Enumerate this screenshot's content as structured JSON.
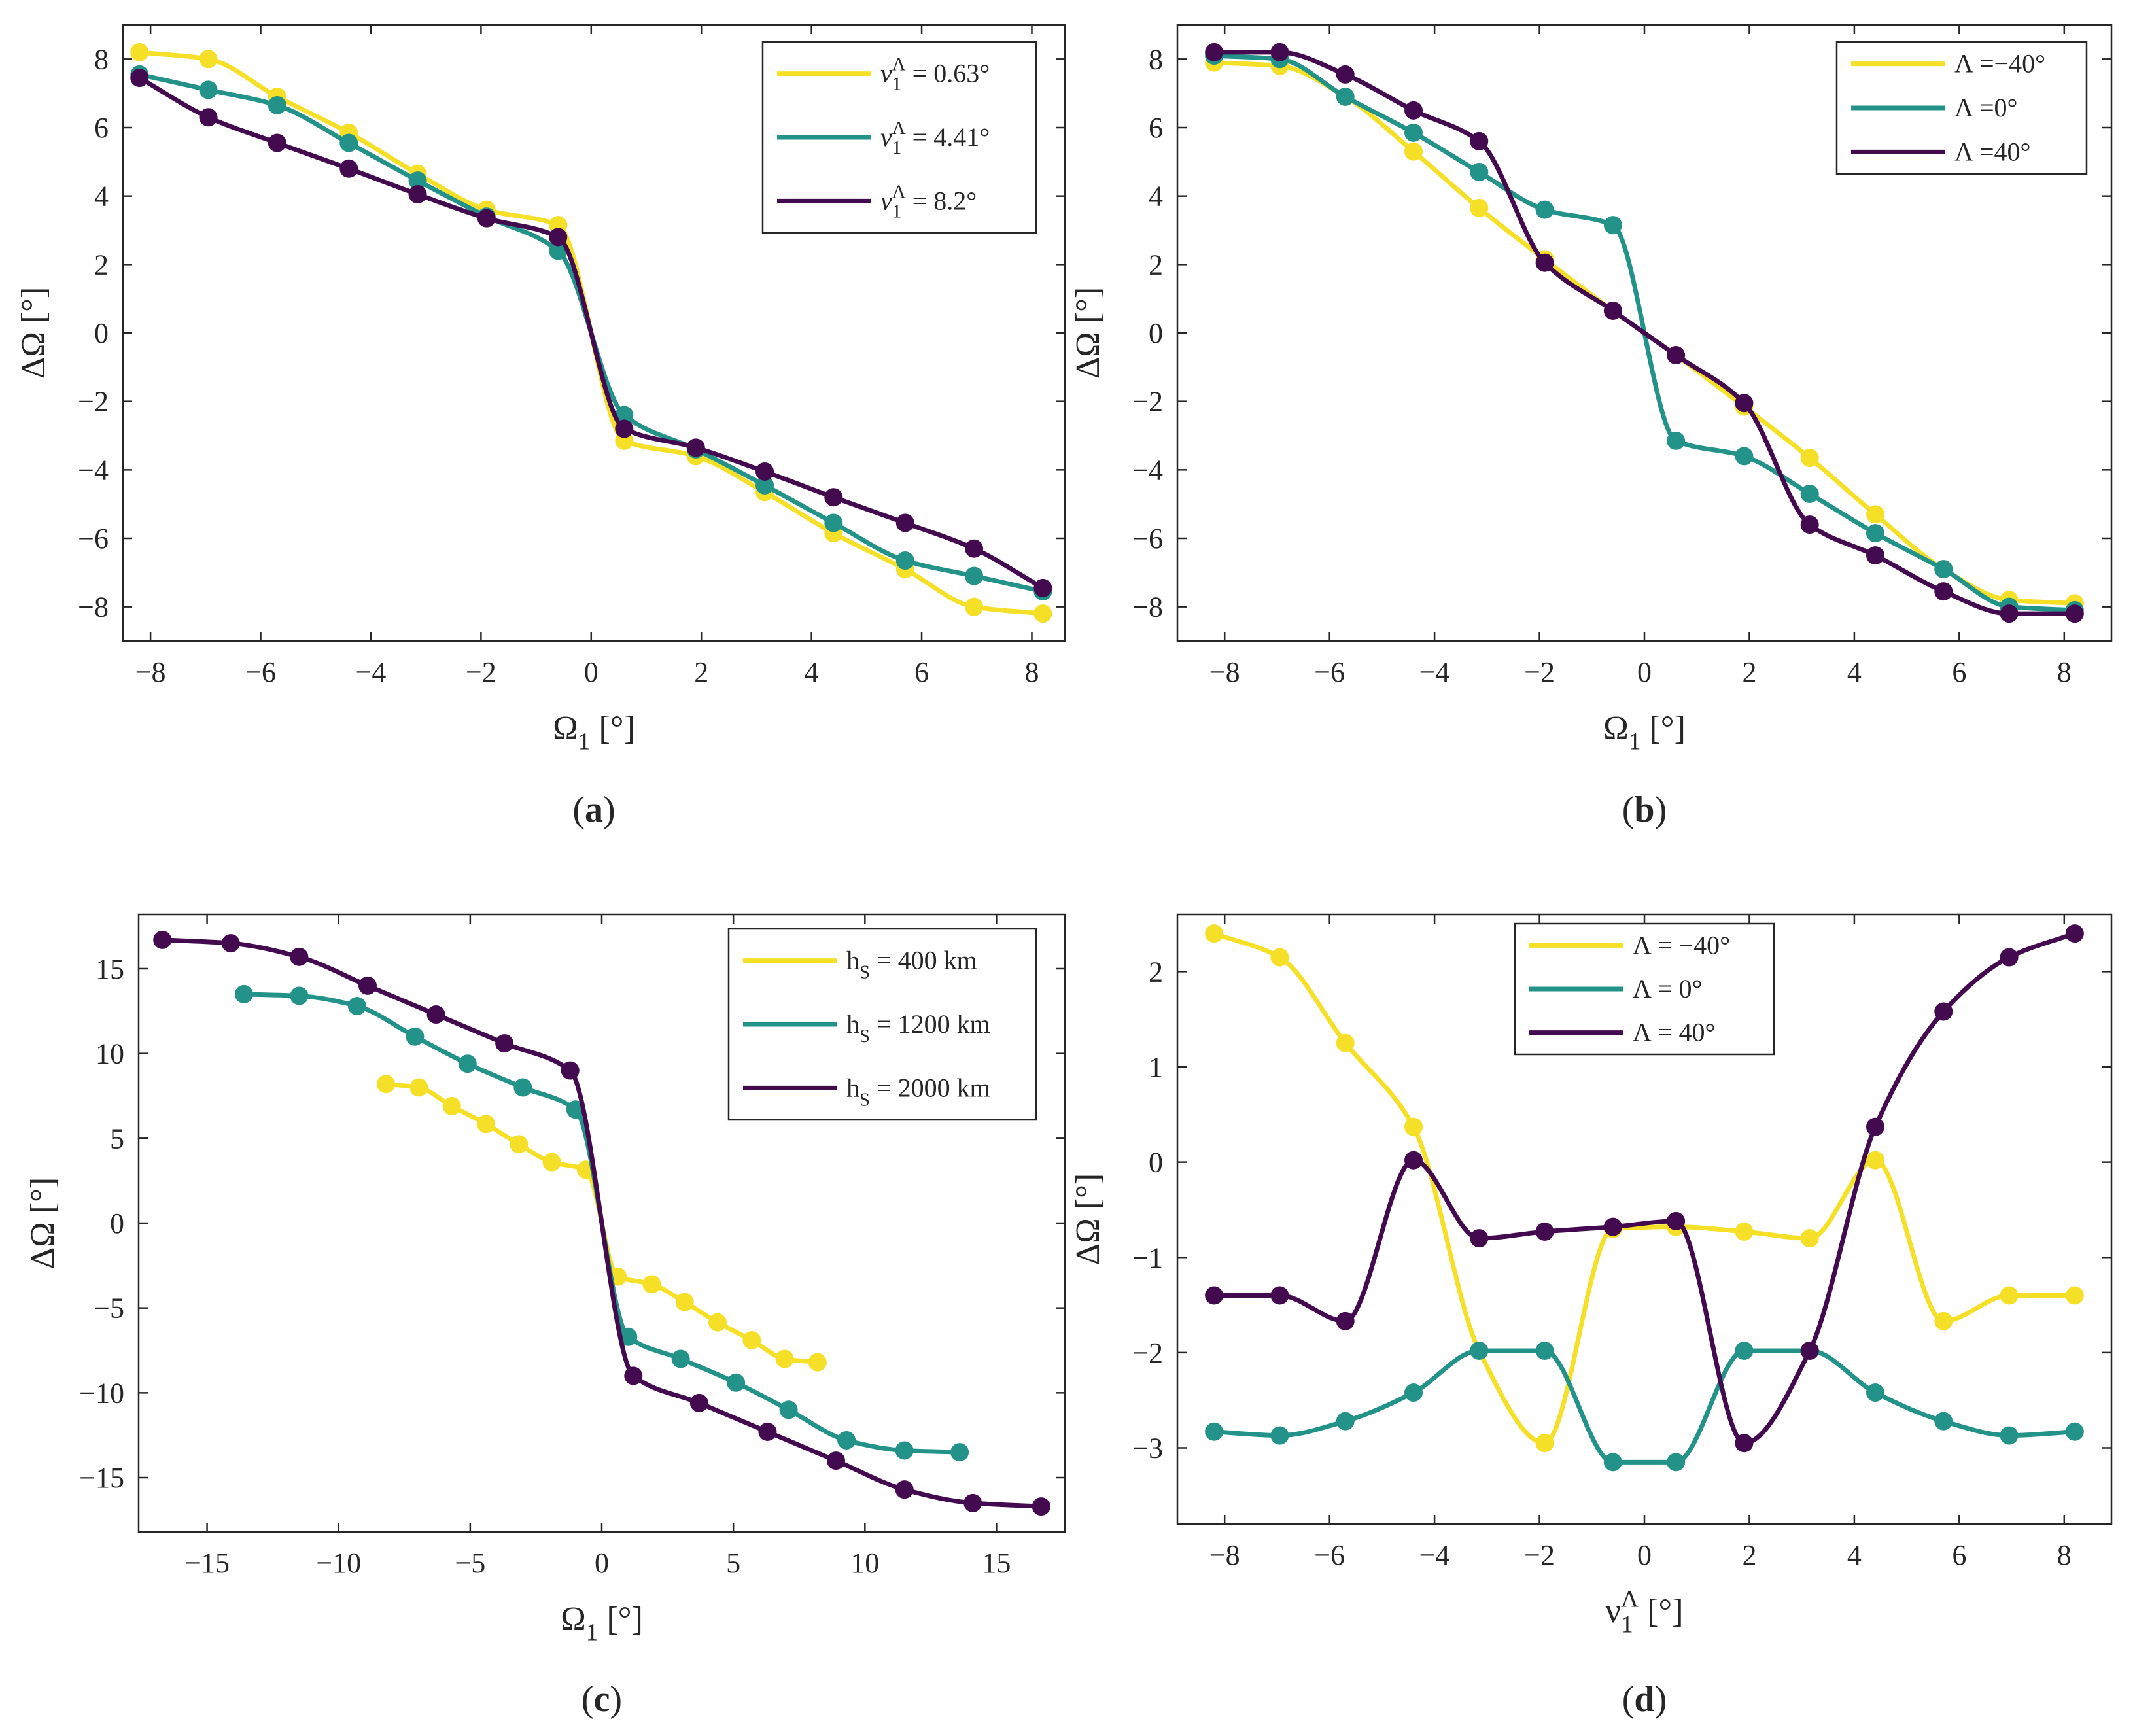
{
  "colors": {
    "yellow": "#f5e027",
    "teal": "#23938a",
    "purple": "#440a4f",
    "axis": "#262626"
  },
  "chart_data": [
    {
      "type": "line",
      "panel_label": "(a)",
      "xlabel": "Ω₁ [°]",
      "ylabel": "ΔΩ [°]",
      "xlim": [
        -8.5,
        8.6
      ],
      "ylim": [
        -9,
        9
      ],
      "xticks": [
        -8,
        -6,
        -4,
        -2,
        0,
        2,
        4,
        6,
        8
      ],
      "yticks": [
        -8,
        -6,
        -4,
        -2,
        0,
        2,
        4,
        6,
        8
      ],
      "legend_position": "top-right",
      "series": [
        {
          "name": "ν₁^Λ = 0.63°",
          "color": "yellow",
          "x": [
            -8.2,
            -6.95,
            -5.7,
            -4.4,
            -3.15,
            -1.9,
            -0.6,
            0.6,
            1.9,
            3.15,
            4.4,
            5.7,
            6.95,
            8.2
          ],
          "y": [
            8.2,
            8.0,
            6.9,
            5.85,
            4.65,
            3.6,
            3.15,
            -3.15,
            -3.6,
            -4.65,
            -5.85,
            -6.9,
            -8.0,
            -8.2
          ]
        },
        {
          "name": "ν₁^Λ = 4.41°",
          "color": "teal",
          "x": [
            -8.2,
            -6.95,
            -5.7,
            -4.4,
            -3.15,
            -1.9,
            -0.6,
            0.6,
            1.9,
            3.15,
            4.4,
            5.7,
            6.95,
            8.2
          ],
          "y": [
            7.55,
            7.1,
            6.65,
            5.55,
            4.45,
            3.4,
            2.4,
            -2.4,
            -3.4,
            -4.45,
            -5.55,
            -6.65,
            -7.1,
            -7.55
          ]
        },
        {
          "name": "ν₁^Λ = 8.2°",
          "color": "purple",
          "x": [
            -8.2,
            -6.95,
            -5.7,
            -4.4,
            -3.15,
            -1.9,
            -0.6,
            0.6,
            1.9,
            3.15,
            4.4,
            5.7,
            6.95,
            8.2
          ],
          "y": [
            7.45,
            6.3,
            5.55,
            4.8,
            4.05,
            3.35,
            2.8,
            -2.8,
            -3.35,
            -4.05,
            -4.8,
            -5.55,
            -6.3,
            -7.45
          ]
        }
      ]
    },
    {
      "type": "line",
      "panel_label": "(b)",
      "xlabel": "Ω₁ [°]",
      "ylabel": "ΔΩ [°]",
      "xlim": [
        -8.9,
        8.9
      ],
      "ylim": [
        -9,
        9
      ],
      "xticks": [
        -8,
        -6,
        -4,
        -2,
        0,
        2,
        4,
        6,
        8
      ],
      "yticks": [
        -8,
        -6,
        -4,
        -2,
        0,
        2,
        4,
        6,
        8
      ],
      "legend_position": "top-right",
      "series": [
        {
          "name": "Λ =−40°",
          "color": "yellow",
          "x": [
            -8.2,
            -6.95,
            -5.7,
            -4.4,
            -3.15,
            -1.9,
            -0.6,
            0.6,
            1.9,
            3.15,
            4.4,
            5.7,
            6.95,
            8.2
          ],
          "y": [
            7.9,
            7.8,
            6.9,
            5.3,
            3.65,
            2.15,
            0.65,
            -0.65,
            -2.15,
            -3.65,
            -5.3,
            -6.9,
            -7.8,
            -7.9
          ]
        },
        {
          "name": "Λ =0°",
          "color": "teal",
          "x": [
            -8.2,
            -6.95,
            -5.7,
            -4.4,
            -3.15,
            -1.9,
            -0.6,
            0.6,
            1.9,
            3.15,
            4.4,
            5.7,
            6.95,
            8.2
          ],
          "y": [
            8.1,
            8.0,
            6.9,
            5.85,
            4.7,
            3.6,
            3.15,
            -3.15,
            -3.6,
            -4.7,
            -5.85,
            -6.9,
            -8.0,
            -8.1
          ]
        },
        {
          "name": "Λ =40°",
          "color": "purple",
          "x": [
            -8.2,
            -6.95,
            -5.7,
            -4.4,
            -3.15,
            -1.9,
            -0.6,
            0.6,
            1.9,
            3.15,
            4.4,
            5.7,
            6.95,
            8.2
          ],
          "y": [
            8.2,
            8.2,
            7.55,
            6.5,
            5.6,
            2.05,
            0.65,
            -0.65,
            -2.05,
            -5.6,
            -6.5,
            -7.55,
            -8.2,
            -8.2
          ]
        }
      ]
    },
    {
      "type": "line",
      "panel_label": "(c)",
      "xlabel": "Ω₁ [°]",
      "ylabel": "ΔΩ [°]",
      "xlim": [
        -17.6,
        17.6
      ],
      "ylim": [
        -18.2,
        18.2
      ],
      "xticks": [
        -15,
        -10,
        -5,
        0,
        5,
        10,
        15
      ],
      "yticks": [
        -15,
        -10,
        -5,
        0,
        5,
        10,
        15
      ],
      "legend_position": "top-right",
      "series": [
        {
          "name": "h_S = 400 km",
          "color": "yellow",
          "x": [
            -8.2,
            -6.95,
            -5.7,
            -4.4,
            -3.15,
            -1.9,
            -0.6,
            0.6,
            1.9,
            3.15,
            4.4,
            5.7,
            6.95,
            8.2
          ],
          "y": [
            8.2,
            8.0,
            6.9,
            5.85,
            4.65,
            3.6,
            3.15,
            -3.15,
            -3.6,
            -4.65,
            -5.85,
            -6.9,
            -8.0,
            -8.2
          ]
        },
        {
          "name": "h_S = 1200 km",
          "color": "teal",
          "x": [
            -13.6,
            -11.5,
            -9.3,
            -7.1,
            -5.1,
            -3.0,
            -1.0,
            1.0,
            3.0,
            5.1,
            7.1,
            9.3,
            11.5,
            13.6
          ],
          "y": [
            13.5,
            13.4,
            12.8,
            11.0,
            9.4,
            8.0,
            6.7,
            -6.7,
            -8.0,
            -9.4,
            -11.0,
            -12.8,
            -13.4,
            -13.5
          ]
        },
        {
          "name": "h_S = 2000 km",
          "color": "purple",
          "x": [
            -16.7,
            -14.1,
            -11.5,
            -8.9,
            -6.3,
            -3.7,
            -1.2,
            1.2,
            3.7,
            6.3,
            8.9,
            11.5,
            14.1,
            16.7
          ],
          "y": [
            16.7,
            16.5,
            15.7,
            14.0,
            12.3,
            10.6,
            9.0,
            -9.0,
            -10.6,
            -12.3,
            -14.0,
            -15.7,
            -16.5,
            -16.7
          ]
        }
      ]
    },
    {
      "type": "line",
      "panel_label": "(d)",
      "xlabel": "ν₁^Λ [°]",
      "ylabel": "ΔΩ [°]",
      "xlim": [
        -8.9,
        8.9
      ],
      "ylim": [
        -3.8,
        2.6
      ],
      "xticks": [
        -8,
        -6,
        -4,
        -2,
        0,
        2,
        4,
        6,
        8
      ],
      "yticks": [
        -3,
        -2,
        -1,
        0,
        1,
        2
      ],
      "legend_position": "top-center",
      "series": [
        {
          "name": "Λ = −40°",
          "color": "yellow",
          "x": [
            -8.2,
            -6.95,
            -5.7,
            -4.4,
            -3.15,
            -1.9,
            -0.6,
            0.6,
            1.9,
            3.15,
            4.4,
            5.7,
            6.95,
            8.2
          ],
          "y": [
            2.4,
            2.15,
            1.25,
            0.37,
            -1.98,
            -2.95,
            -0.7,
            -0.68,
            -0.73,
            -0.8,
            0.02,
            -1.67,
            -1.4,
            -1.4
          ]
        },
        {
          "name": "Λ = 0°",
          "color": "teal",
          "x": [
            -8.2,
            -6.95,
            -5.7,
            -4.4,
            -3.15,
            -1.9,
            -0.6,
            0.6,
            1.9,
            3.15,
            4.4,
            5.7,
            6.95,
            8.2
          ],
          "y": [
            -2.83,
            -2.87,
            -2.72,
            -2.42,
            -1.98,
            -1.98,
            -3.15,
            -3.15,
            -1.98,
            -1.98,
            -2.42,
            -2.72,
            -2.87,
            -2.83
          ]
        },
        {
          "name": "Λ = 40°",
          "color": "purple",
          "x": [
            -8.2,
            -6.95,
            -5.7,
            -4.4,
            -3.15,
            -1.9,
            -0.6,
            0.6,
            1.9,
            3.15,
            4.4,
            5.7,
            6.95,
            8.2
          ],
          "y": [
            -1.4,
            -1.4,
            -1.67,
            0.02,
            -0.8,
            -0.73,
            -0.68,
            -0.62,
            -2.95,
            -1.98,
            0.37,
            1.58,
            2.15,
            2.4
          ]
        }
      ]
    }
  ]
}
